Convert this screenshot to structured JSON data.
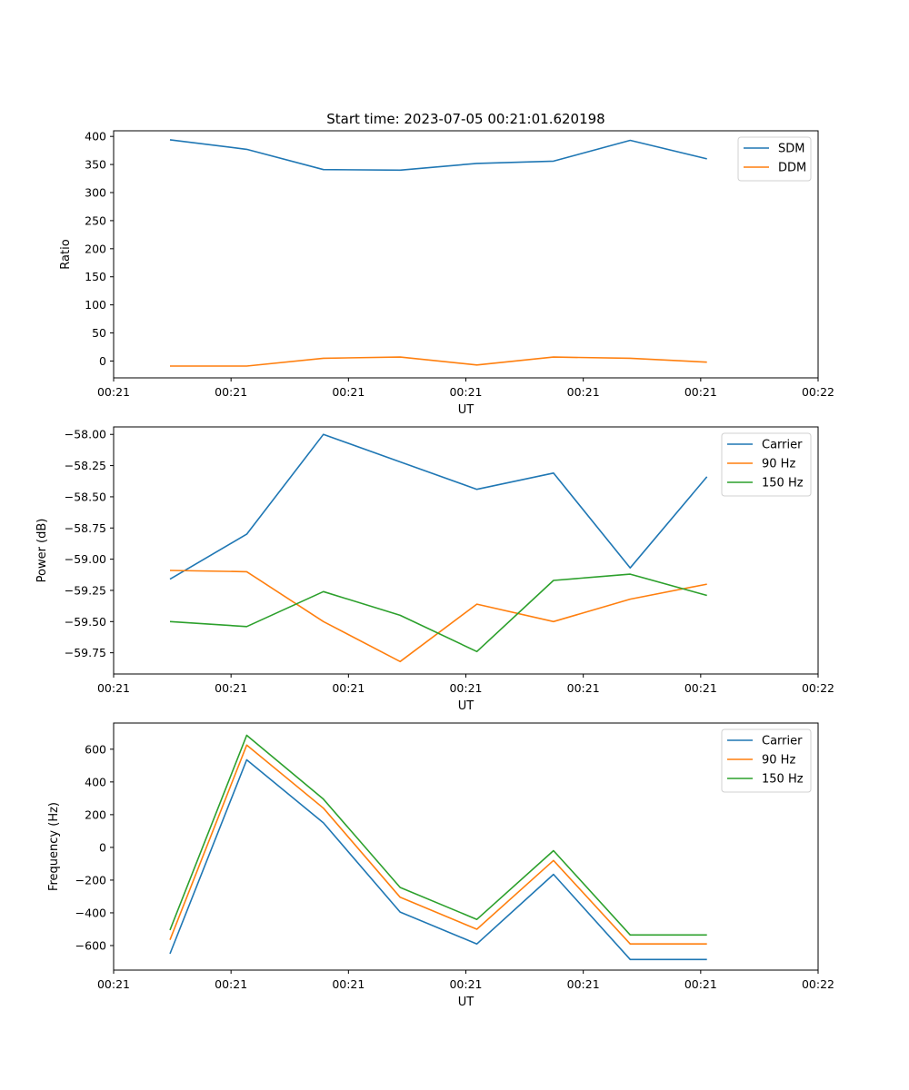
{
  "chart_data": [
    {
      "type": "line",
      "title": "Start time: 2023-07-05 00:21:01.620198",
      "xlabel": "UT",
      "ylabel": "Ratio",
      "xlim": [
        0,
        9.0
      ],
      "ylim": [
        -30,
        410
      ],
      "x_tick_positions": [
        0,
        1.5,
        3,
        4.5,
        6,
        7.5,
        9
      ],
      "x_tick_labels": [
        "00:21",
        "00:21",
        "00:21",
        "00:21",
        "00:21",
        "00:21",
        "00:22"
      ],
      "y_ticks": [
        0,
        50,
        100,
        150,
        200,
        250,
        300,
        350,
        400
      ],
      "y_tick_labels": [
        "0",
        "50",
        "100",
        "150",
        "200",
        "250",
        "300",
        "350",
        "400"
      ],
      "legend_position": "top-right",
      "x": [
        0.72,
        1.7,
        2.68,
        3.66,
        4.64,
        5.62,
        6.6,
        7.58
      ],
      "series": [
        {
          "name": "SDM",
          "color": "#1f77b4",
          "values": [
            394,
            377,
            341,
            340,
            352,
            356,
            393,
            360
          ]
        },
        {
          "name": "DDM",
          "color": "#ff7f0e",
          "values": [
            -9,
            -9,
            5,
            7,
            -7,
            7,
            5,
            -2
          ]
        }
      ]
    },
    {
      "type": "line",
      "title": "",
      "xlabel": "UT",
      "ylabel": "Power (dB)",
      "xlim": [
        0,
        9.0
      ],
      "ylim": [
        -59.92,
        -57.94
      ],
      "x_tick_positions": [
        0,
        1.5,
        3,
        4.5,
        6,
        7.5,
        9
      ],
      "x_tick_labels": [
        "00:21",
        "00:21",
        "00:21",
        "00:21",
        "00:21",
        "00:21",
        "00:22"
      ],
      "y_ticks": [
        -58.0,
        -58.25,
        -58.5,
        -58.75,
        -59.0,
        -59.25,
        -59.5,
        -59.75
      ],
      "y_tick_labels": [
        "−58.00",
        "−58.25",
        "−58.50",
        "−58.75",
        "−59.00",
        "−59.25",
        "−59.50",
        "−59.75"
      ],
      "legend_position": "top-right",
      "x": [
        0.72,
        1.7,
        2.68,
        3.66,
        4.64,
        5.62,
        6.6,
        7.58
      ],
      "series": [
        {
          "name": "Carrier",
          "color": "#1f77b4",
          "values": [
            -59.16,
            -58.8,
            -58.0,
            -58.22,
            -58.44,
            -58.31,
            -59.07,
            -58.34
          ]
        },
        {
          "name": "90 Hz",
          "color": "#ff7f0e",
          "values": [
            -59.09,
            -59.1,
            -59.5,
            -59.82,
            -59.36,
            -59.5,
            -59.32,
            -59.2
          ]
        },
        {
          "name": "150 Hz",
          "color": "#2ca02c",
          "values": [
            -59.5,
            -59.54,
            -59.26,
            -59.45,
            -59.74,
            -59.17,
            -59.12,
            -59.29
          ]
        }
      ]
    },
    {
      "type": "line",
      "title": "",
      "xlabel": "UT",
      "ylabel": "Frequency (Hz)",
      "xlim": [
        0,
        9.0
      ],
      "ylim": [
        -750,
        760
      ],
      "x_tick_positions": [
        0,
        1.5,
        3,
        4.5,
        6,
        7.5,
        9
      ],
      "x_tick_labels": [
        "00:21",
        "00:21",
        "00:21",
        "00:21",
        "00:21",
        "00:21",
        "00:22"
      ],
      "y_ticks": [
        -600,
        -400,
        -200,
        0,
        200,
        400,
        600
      ],
      "y_tick_labels": [
        "−600",
        "−400",
        "−200",
        "0",
        "200",
        "400",
        "600"
      ],
      "legend_position": "top-right",
      "x": [
        0.72,
        1.7,
        2.68,
        3.66,
        4.64,
        5.62,
        6.6,
        7.58
      ],
      "series": [
        {
          "name": "Carrier",
          "color": "#1f77b4",
          "values": [
            -650,
            535,
            150,
            -395,
            -590,
            -165,
            -685,
            -685
          ]
        },
        {
          "name": "90 Hz",
          "color": "#ff7f0e",
          "values": [
            -565,
            625,
            240,
            -305,
            -500,
            -80,
            -590,
            -590
          ]
        },
        {
          "name": "150 Hz",
          "color": "#2ca02c",
          "values": [
            -505,
            685,
            295,
            -245,
            -440,
            -20,
            -535,
            -535
          ]
        }
      ]
    }
  ]
}
